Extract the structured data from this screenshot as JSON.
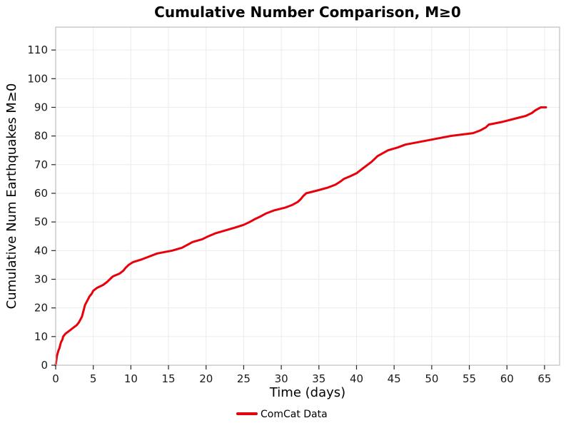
{
  "chart_data": {
    "type": "line",
    "title": "Cumulative Number Comparison, M≥0",
    "xlabel": "Time (days)",
    "ylabel": "Cumulative Num Earthquakes M≥0",
    "xlim": [
      0,
      67
    ],
    "ylim": [
      0,
      118
    ],
    "xticks": [
      0,
      5,
      10,
      15,
      20,
      25,
      30,
      35,
      40,
      45,
      50,
      55,
      60,
      65
    ],
    "yticks": [
      0,
      10,
      20,
      30,
      40,
      50,
      60,
      70,
      80,
      90,
      100,
      110
    ],
    "grid": true,
    "grid_color": "#ebebeb",
    "border_color": "#bdbdbd",
    "tick_color": "#262626",
    "legend": {
      "position": "bottom",
      "entries": [
        {
          "label": "ComCat Data",
          "color": "#e8000b"
        }
      ]
    },
    "series": [
      {
        "name": "ComCat Data",
        "color": "#e8000b",
        "points": [
          [
            0,
            0
          ],
          [
            0.05,
            1
          ],
          [
            0.1,
            2
          ],
          [
            0.15,
            3
          ],
          [
            0.25,
            4
          ],
          [
            0.35,
            5
          ],
          [
            0.5,
            6
          ],
          [
            0.6,
            7
          ],
          [
            0.7,
            8
          ],
          [
            0.9,
            9
          ],
          [
            1.0,
            10
          ],
          [
            1.3,
            11
          ],
          [
            1.8,
            12
          ],
          [
            2.3,
            13
          ],
          [
            2.8,
            14
          ],
          [
            3.1,
            15
          ],
          [
            3.3,
            16
          ],
          [
            3.5,
            17
          ],
          [
            3.6,
            18
          ],
          [
            3.7,
            19
          ],
          [
            3.8,
            20
          ],
          [
            3.9,
            21
          ],
          [
            4.1,
            22
          ],
          [
            4.3,
            23
          ],
          [
            4.5,
            24
          ],
          [
            4.8,
            25
          ],
          [
            5.0,
            26
          ],
          [
            5.5,
            27
          ],
          [
            6.3,
            28
          ],
          [
            6.8,
            29
          ],
          [
            7.2,
            30
          ],
          [
            7.6,
            31
          ],
          [
            8.5,
            32
          ],
          [
            9.0,
            33
          ],
          [
            9.3,
            34
          ],
          [
            9.7,
            35
          ],
          [
            10.3,
            36
          ],
          [
            11.5,
            37
          ],
          [
            12.5,
            38
          ],
          [
            13.5,
            39
          ],
          [
            15.5,
            40
          ],
          [
            16.8,
            41
          ],
          [
            17.5,
            42
          ],
          [
            18.2,
            43
          ],
          [
            19.5,
            44
          ],
          [
            20.3,
            45
          ],
          [
            21.2,
            46
          ],
          [
            22.5,
            47
          ],
          [
            23.8,
            48
          ],
          [
            25.0,
            49
          ],
          [
            25.8,
            50
          ],
          [
            26.5,
            51
          ],
          [
            27.3,
            52
          ],
          [
            28.0,
            53
          ],
          [
            29.0,
            54
          ],
          [
            30.5,
            55
          ],
          [
            31.5,
            56
          ],
          [
            32.2,
            57
          ],
          [
            32.6,
            58
          ],
          [
            32.9,
            59
          ],
          [
            33.3,
            60
          ],
          [
            34.8,
            61
          ],
          [
            36.2,
            62
          ],
          [
            37.2,
            63
          ],
          [
            37.8,
            64
          ],
          [
            38.3,
            65
          ],
          [
            39.2,
            66
          ],
          [
            40.0,
            67
          ],
          [
            40.5,
            68
          ],
          [
            41.0,
            69
          ],
          [
            41.5,
            70
          ],
          [
            42.0,
            71
          ],
          [
            42.4,
            72
          ],
          [
            42.8,
            73
          ],
          [
            43.5,
            74
          ],
          [
            44.2,
            75
          ],
          [
            45.5,
            76
          ],
          [
            46.5,
            77
          ],
          [
            48.5,
            78
          ],
          [
            50.5,
            79
          ],
          [
            52.5,
            80
          ],
          [
            55.5,
            81
          ],
          [
            56.5,
            82
          ],
          [
            57.2,
            83
          ],
          [
            57.6,
            84
          ],
          [
            59.5,
            85
          ],
          [
            61.0,
            86
          ],
          [
            62.5,
            87
          ],
          [
            63.3,
            88
          ],
          [
            63.8,
            89
          ],
          [
            64.5,
            90
          ],
          [
            65.2,
            90
          ]
        ]
      }
    ]
  }
}
